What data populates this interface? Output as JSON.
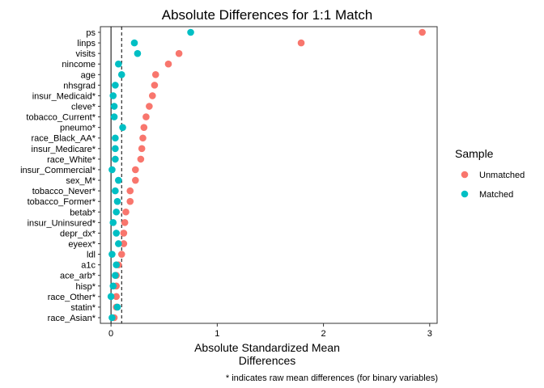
{
  "chart_data": {
    "type": "scatter",
    "title": "Absolute Differences for 1:1 Match",
    "xlabel_lines": [
      "Absolute Standardized Mean",
      "Differences"
    ],
    "ylabel": "",
    "caption": "* indicates raw mean differences (for binary variables)",
    "xlim": [
      -0.1,
      3.07
    ],
    "xticks": [
      0,
      1,
      2,
      3
    ],
    "xtick_labels": [
      "0",
      "1",
      "2",
      "3"
    ],
    "reference_lines": [
      {
        "value": 0,
        "style": "solid"
      },
      {
        "value": 0.1,
        "style": "dashed"
      }
    ],
    "categories": [
      "ps",
      "linps",
      "visits",
      "nincome",
      "age",
      "nhsgrad",
      "insur_Medicaid*",
      "cleve*",
      "tobacco_Current*",
      "pneumo*",
      "race_Black_AA*",
      "insur_Medicare*",
      "race_White*",
      "insur_Commercial*",
      "sex_M*",
      "tobacco_Never*",
      "tobacco_Former*",
      "betab*",
      "insur_Uninsured*",
      "depr_dx*",
      "eyeex*",
      "ldl",
      "a1c",
      "ace_arb*",
      "hisp*",
      "race_Other*",
      "statin*",
      "race_Asian*"
    ],
    "series": [
      {
        "name": "Unmatched",
        "color": "#F8766D",
        "values": [
          2.93,
          1.79,
          0.64,
          0.54,
          0.42,
          0.41,
          0.39,
          0.36,
          0.33,
          0.31,
          0.3,
          0.29,
          0.28,
          0.23,
          0.23,
          0.18,
          0.18,
          0.14,
          0.13,
          0.12,
          0.12,
          0.1,
          0.07,
          0.05,
          0.05,
          0.05,
          0.05,
          0.03
        ]
      },
      {
        "name": "Matched",
        "color": "#00BFC4",
        "values": [
          0.75,
          0.22,
          0.25,
          0.07,
          0.1,
          0.04,
          0.02,
          0.03,
          0.03,
          0.11,
          0.04,
          0.04,
          0.04,
          0.01,
          0.07,
          0.04,
          0.06,
          0.05,
          0.02,
          0.05,
          0.07,
          0.01,
          0.05,
          0.04,
          0.02,
          0.0,
          0.06,
          0.01
        ]
      }
    ],
    "legend": {
      "title": "Sample",
      "position": "right",
      "entries": [
        "Unmatched",
        "Matched"
      ]
    },
    "grid": false
  }
}
